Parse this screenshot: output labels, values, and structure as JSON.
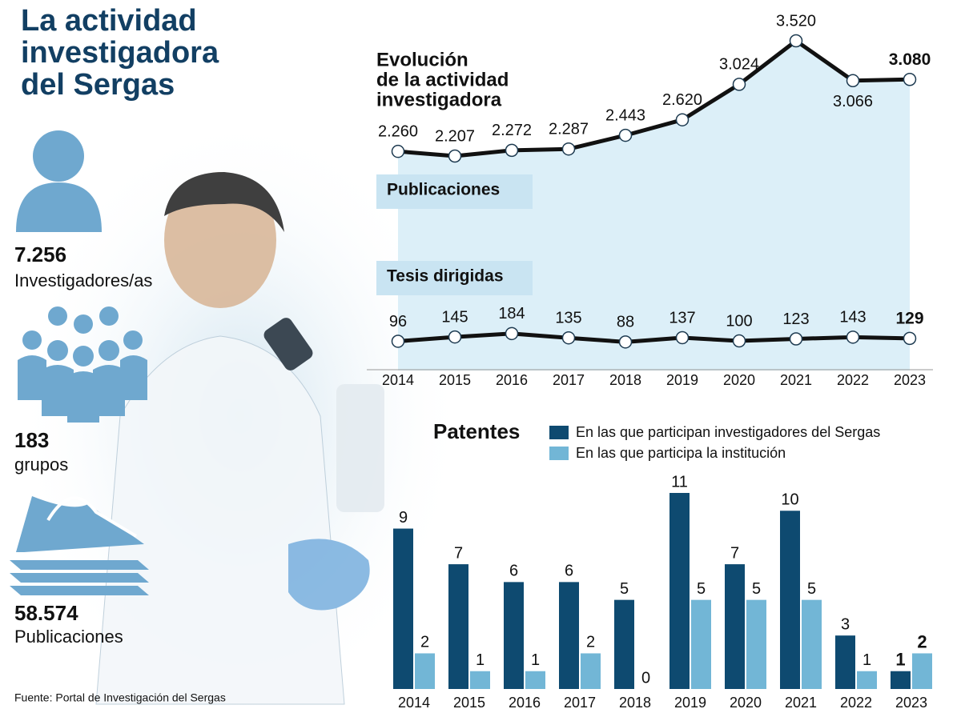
{
  "title": [
    "La actividad",
    "investigadora",
    "del Sergas"
  ],
  "stats": [
    {
      "value": "7.256",
      "label": "Investigadores/as"
    },
    {
      "value": "183",
      "label": "grupos"
    },
    {
      "value": "58.574",
      "label": "Publicaciones"
    }
  ],
  "source": "Fuente: Portal de Investigación del Sergas",
  "chart_data": [
    {
      "type": "line",
      "title": [
        "Evolución",
        "de la actividad",
        "investigadora"
      ],
      "categories": [
        "2014",
        "2015",
        "2016",
        "2017",
        "2018",
        "2019",
        "2020",
        "2021",
        "2022",
        "2023"
      ],
      "area_color": "#dcEFF8",
      "series": [
        {
          "name": "Publicaciones",
          "color": "#111111",
          "values": [
            2260,
            2207,
            2272,
            2287,
            2443,
            2620,
            3024,
            3520,
            3066,
            3080
          ],
          "value_labels": [
            "2.260",
            "2.207",
            "2.272",
            "2.287",
            "2.443",
            "2.620",
            "3.024",
            "3.520",
            "3.066",
            "3.080"
          ]
        },
        {
          "name": "Tesis dirigidas",
          "color": "#111111",
          "values": [
            96,
            145,
            184,
            135,
            88,
            137,
            100,
            123,
            143,
            129
          ]
        }
      ]
    },
    {
      "type": "bar",
      "title": "Patentes",
      "categories": [
        "2014",
        "2015",
        "2016",
        "2017",
        "2018",
        "2019",
        "2020",
        "2021",
        "2022",
        "2023"
      ],
      "series": [
        {
          "name": "En las que participan investigadores del Sergas",
          "color": "#0e4a70",
          "values": [
            9,
            7,
            6,
            6,
            5,
            11,
            7,
            10,
            3,
            1
          ]
        },
        {
          "name": "En las que participa la institución",
          "color": "#72b6d6",
          "values": [
            2,
            1,
            1,
            2,
            0,
            5,
            5,
            5,
            1,
            2
          ]
        }
      ]
    }
  ]
}
